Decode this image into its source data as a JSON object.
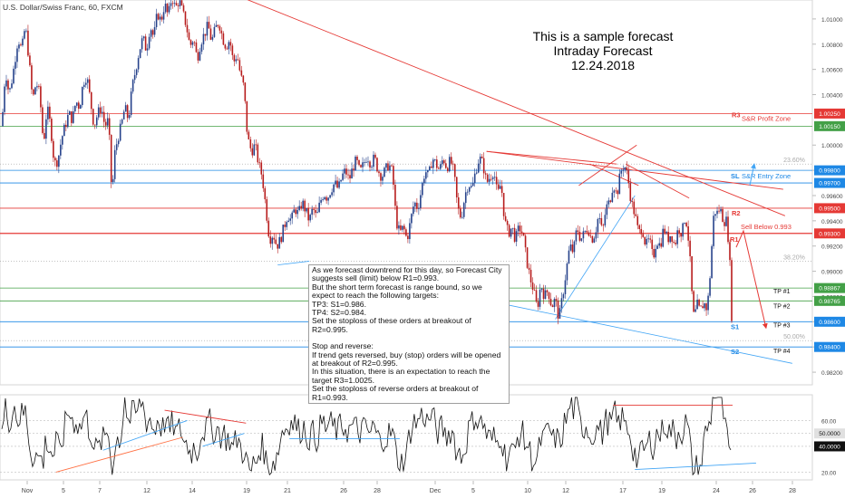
{
  "header": {
    "symbol": "U.S. Dollar/Swiss Franc, 60, FXCM"
  },
  "forecast": {
    "line1": "This is a sample forecast",
    "line2": "Intraday Forecast",
    "line3": "12.24.2018"
  },
  "note": {
    "lines": [
      "As we forecast downtrend for this day, so Forecast City suggests sell (limit) below R1=0.993.",
      "But the short term forecast is range bound, so we expect to reach the following targets:",
      "TP3: S1=0.986.",
      "TP4: S2=0.984.",
      "Set the stoploss of these orders at breakout of R2=0.995.",
      "",
      "Stop and reverse:",
      "If trend gets reversed, buy (stop) orders will be opened at breakout of R2=0.995.",
      "In this situation, there is an expectation to reach the target R3=1.0025.",
      "Set the stoploss of reverse orders at breakout of R1=0.993."
    ]
  },
  "colors": {
    "red": "#e53935",
    "green": "#43a047",
    "blue": "#1e88e5",
    "candle_up": "#26428b",
    "candle_down": "#b71c1c",
    "trend_red": "#e53935",
    "trend_blue": "#42a5f5",
    "fib": "#9e9e9e",
    "osc": "#111111",
    "osc_orange": "#ff7043"
  },
  "chart_data": [
    {
      "type": "candlestick",
      "title": "U.S. Dollar/Swiss Franc, 60, FXCM",
      "ylim": [
        0.981,
        1.0115
      ],
      "y_ticks": [
        1.01,
        1.008,
        1.006,
        1.004,
        1.0,
        0.998,
        0.996,
        0.994,
        0.992,
        0.99,
        0.988,
        0.986,
        0.984,
        0.982
      ],
      "x_ticks": [
        "Nov",
        "5",
        "7",
        "12",
        "14",
        "19",
        "21",
        "26",
        "28",
        "Dec",
        "5",
        "10",
        "12",
        "17",
        "19",
        "24",
        "26",
        "28"
      ],
      "close_path": [
        [
          0,
          1.0015
        ],
        [
          4,
          1.006
        ],
        [
          8,
          1.004
        ],
        [
          12,
          1.0055
        ],
        [
          18,
          1.0085
        ],
        [
          22,
          1.0075
        ],
        [
          26,
          1.0095
        ],
        [
          30,
          1.0068
        ],
        [
          34,
          1.0035
        ],
        [
          38,
          1.005
        ],
        [
          42,
          1.004
        ],
        [
          46,
          1.0
        ],
        [
          50,
          1.003
        ],
        [
          54,
          1.0015
        ],
        [
          58,
          0.9985
        ],
        [
          62,
          0.9988
        ],
        [
          66,
          1.0005
        ],
        [
          70,
          1.0015
        ],
        [
          74,
          1.0025
        ],
        [
          78,
          1.002
        ],
        [
          82,
          1.0035
        ],
        [
          86,
          1.003
        ],
        [
          90,
          1.005
        ],
        [
          94,
          1.0055
        ],
        [
          98,
          1.0035
        ],
        [
          102,
          1.0015
        ],
        [
          106,
          1.0025
        ],
        [
          110,
          1.003
        ],
        [
          114,
          1.0015
        ],
        [
          118,
          1.002
        ],
        [
          122,
          0.9955
        ],
        [
          124,
          0.999
        ],
        [
          128,
          1.0005
        ],
        [
          132,
          1.0015
        ],
        [
          136,
          1.003
        ],
        [
          140,
          1.002
        ],
        [
          144,
          1.0045
        ],
        [
          148,
          1.006
        ],
        [
          152,
          1.0075
        ],
        [
          156,
          1.0085
        ],
        [
          160,
          1.0075
        ],
        [
          164,
          1.0095
        ],
        [
          168,
          1.0085
        ],
        [
          172,
          1.0105
        ],
        [
          176,
          1.0098
        ],
        [
          180,
          1.0112
        ],
        [
          184,
          1.0102
        ],
        [
          188,
          1.0118
        ],
        [
          192,
          1.0108
        ],
        [
          196,
          1.0115
        ],
        [
          200,
          1.0105
        ],
        [
          204,
          1.0095
        ],
        [
          208,
          1.0078
        ],
        [
          212,
          1.0085
        ],
        [
          216,
          1.0068
        ],
        [
          220,
          1.0082
        ],
        [
          224,
          1.0088
        ],
        [
          228,
          1.0095
        ],
        [
          232,
          1.0082
        ],
        [
          236,
          1.0092
        ],
        [
          240,
          1.0098
        ],
        [
          244,
          1.0085
        ],
        [
          248,
          1.0078
        ],
        [
          252,
          1.0084
        ],
        [
          256,
          1.0065
        ],
        [
          260,
          1.0072
        ],
        [
          264,
          1.0055
        ],
        [
          268,
          1.0045
        ],
        [
          270,
          1.002
        ],
        [
          272,
          1.0005
        ],
        [
          276,
          0.9995
        ],
        [
          280,
          1.0
        ],
        [
          284,
          0.9985
        ],
        [
          288,
          0.9975
        ],
        [
          292,
          0.995
        ],
        [
          296,
          0.9925
        ],
        [
          300,
          0.993
        ],
        [
          304,
          0.992
        ],
        [
          308,
          0.9925
        ],
        [
          312,
          0.9935
        ],
        [
          316,
          0.9945
        ],
        [
          320,
          0.994
        ],
        [
          324,
          0.995
        ],
        [
          328,
          0.9945
        ],
        [
          332,
          0.9955
        ],
        [
          336,
          0.9948
        ],
        [
          340,
          0.994
        ],
        [
          344,
          0.995
        ],
        [
          348,
          0.9942
        ],
        [
          352,
          0.9955
        ],
        [
          356,
          0.9962
        ],
        [
          360,
          0.9958
        ],
        [
          364,
          0.9965
        ],
        [
          368,
          0.997
        ],
        [
          372,
          0.9965
        ],
        [
          376,
          0.9975
        ],
        [
          380,
          0.998
        ],
        [
          384,
          0.9972
        ],
        [
          388,
          0.9982
        ],
        [
          392,
          0.9988
        ],
        [
          396,
          0.9978
        ],
        [
          400,
          0.9985
        ],
        [
          404,
          0.9992
        ],
        [
          408,
          0.9985
        ],
        [
          412,
          0.999
        ],
        [
          416,
          0.998
        ],
        [
          420,
          0.9975
        ],
        [
          424,
          0.998
        ],
        [
          428,
          0.9985
        ],
        [
          432,
          0.9978
        ],
        [
          436,
          0.994
        ],
        [
          440,
          0.993
        ],
        [
          444,
          0.9935
        ],
        [
          448,
          0.9925
        ],
        [
          452,
          0.994
        ],
        [
          456,
          0.9955
        ],
        [
          460,
          0.995
        ],
        [
          464,
          0.9965
        ],
        [
          468,
          0.998
        ],
        [
          472,
          0.9975
        ],
        [
          476,
          0.999
        ],
        [
          480,
          0.9985
        ],
        [
          484,
          0.998
        ],
        [
          488,
          0.999
        ],
        [
          492,
          0.9982
        ],
        [
          496,
          0.9988
        ],
        [
          500,
          0.9978
        ],
        [
          504,
          0.995
        ],
        [
          508,
          0.9942
        ],
        [
          512,
          0.996
        ],
        [
          516,
          0.997
        ],
        [
          520,
          0.9965
        ],
        [
          524,
          0.998
        ],
        [
          528,
          0.999
        ],
        [
          532,
          0.9985
        ],
        [
          536,
          0.997
        ],
        [
          540,
          0.9975
        ],
        [
          544,
          0.998
        ],
        [
          548,
          0.996
        ],
        [
          552,
          0.997
        ],
        [
          556,
          0.994
        ],
        [
          560,
          0.993
        ],
        [
          564,
          0.9935
        ],
        [
          568,
          0.9925
        ],
        [
          572,
          0.9935
        ],
        [
          576,
          0.993
        ],
        [
          580,
          0.991
        ],
        [
          584,
          0.9895
        ],
        [
          588,
          0.9885
        ],
        [
          592,
          0.987
        ],
        [
          596,
          0.989
        ],
        [
          600,
          0.988
        ],
        [
          604,
          0.9885
        ],
        [
          608,
          0.9872
        ],
        [
          612,
          0.9878
        ],
        [
          616,
          0.9862
        ],
        [
          620,
          0.988
        ],
        [
          624,
          0.99
        ],
        [
          628,
          0.992
        ],
        [
          632,
          0.9915
        ],
        [
          636,
          0.9935
        ],
        [
          640,
          0.9925
        ],
        [
          644,
          0.993
        ],
        [
          648,
          0.9935
        ],
        [
          652,
          0.9925
        ],
        [
          656,
          0.993
        ],
        [
          660,
          0.9945
        ],
        [
          664,
          0.993
        ],
        [
          668,
          0.995
        ],
        [
          672,
          0.9955
        ],
        [
          676,
          0.997
        ],
        [
          680,
          0.996
        ],
        [
          684,
          0.9978
        ],
        [
          688,
          0.9985
        ],
        [
          692,
          0.9975
        ],
        [
          696,
          0.9955
        ],
        [
          700,
          0.9945
        ],
        [
          704,
          0.993
        ],
        [
          708,
          0.9935
        ],
        [
          712,
          0.992
        ],
        [
          716,
          0.9925
        ],
        [
          720,
          0.991
        ],
        [
          724,
          0.9925
        ],
        [
          728,
          0.992
        ],
        [
          732,
          0.9935
        ],
        [
          736,
          0.9925
        ],
        [
          740,
          0.993
        ],
        [
          744,
          0.992
        ],
        [
          748,
          0.9935
        ],
        [
          752,
          0.993
        ],
        [
          756,
          0.9945
        ],
        [
          760,
          0.992
        ],
        [
          762,
          0.9895
        ],
        [
          764,
          0.987
        ],
        [
          766,
          0.986
        ],
        [
          768,
          0.9875
        ],
        [
          772,
          0.9868
        ],
        [
          776,
          0.9875
        ],
        [
          780,
          0.987
        ],
        [
          784,
          0.9905
        ],
        [
          786,
          0.9935
        ],
        [
          788,
          0.995
        ],
        [
          790,
          0.9945
        ],
        [
          794,
          0.995
        ],
        [
          798,
          0.994
        ],
        [
          802,
          0.994
        ],
        [
          804,
          0.9915
        ],
        [
          806,
          0.9895
        ],
        [
          807,
          0.9865
        ]
      ],
      "levels": [
        {
          "name": "R3",
          "value": 1.0025,
          "tag": "1.00250",
          "label": "S&R Profit Zone",
          "color": "#e53935"
        },
        {
          "name": "",
          "value": 1.0015,
          "tag": "1.00150",
          "label": "",
          "color": "#43a047"
        },
        {
          "name": "SL",
          "value": 0.998,
          "tag": "0.99800",
          "label": "S&R Entry Zone",
          "color": "#1e88e5"
        },
        {
          "name": "",
          "value": 0.997,
          "tag": "0.99700",
          "label": "",
          "color": "#1e88e5"
        },
        {
          "name": "R2",
          "value": 0.995,
          "tag": "0.99500",
          "label": "",
          "color": "#e53935"
        },
        {
          "name": "R1",
          "value": 0.993,
          "tag": "0.99300",
          "label": "",
          "color": "#e53935"
        },
        {
          "name": "TP #1",
          "value": 0.98867,
          "tag": "0.98867",
          "label": "",
          "color": "#43a047"
        },
        {
          "name": "TP #2",
          "value": 0.98765,
          "tag": "0.98765",
          "label": "",
          "color": "#43a047"
        },
        {
          "name": "S1",
          "value": 0.986,
          "tag": "0.98600",
          "label": "",
          "color": "#1e88e5"
        },
        {
          "name": "S2",
          "value": 0.984,
          "tag": "0.98400",
          "label": "",
          "color": "#1e88e5"
        }
      ],
      "fib_levels": [
        {
          "label": "23.60%",
          "value": 0.9985
        },
        {
          "label": "38.20%",
          "value": 0.9908
        },
        {
          "label": "50.00%",
          "value": 0.9845
        }
      ],
      "annotations": {
        "sell_below": "Sell Below 0.993",
        "tp3": "TP #3",
        "tp4": "TP #4"
      }
    },
    {
      "type": "line",
      "ylim": [
        14,
        80
      ],
      "y_ticks": [
        60.0,
        40.0,
        20.0
      ],
      "reference_line": 50.0,
      "reference_tag": "50.0000",
      "current_tag": "40.0000",
      "current_value": 40.0
    }
  ]
}
